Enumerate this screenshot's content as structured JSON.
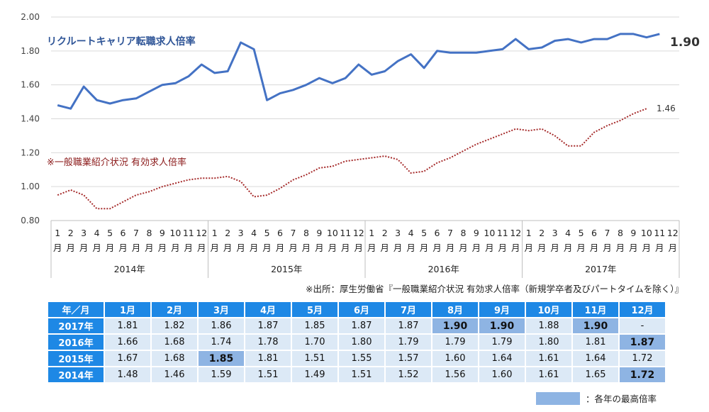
{
  "chart_data": {
    "type": "line",
    "y_ticks": [
      "2.00",
      "1.80",
      "1.60",
      "1.40",
      "1.20",
      "1.00",
      "0.80"
    ],
    "ylim": [
      0.8,
      2.0
    ],
    "month_numbers": [
      "1",
      "2",
      "3",
      "4",
      "5",
      "6",
      "7",
      "8",
      "9",
      "10",
      "11",
      "12"
    ],
    "month_suffix": "月",
    "years": [
      "2014年",
      "2015年",
      "2016年",
      "2017年"
    ],
    "series": [
      {
        "name": "リクルートキャリア転職求人倍率",
        "color": "#4472C4",
        "style": "solid",
        "end_label": "1.90",
        "values": [
          1.48,
          1.46,
          1.59,
          1.51,
          1.49,
          1.51,
          1.52,
          1.56,
          1.6,
          1.61,
          1.65,
          1.72,
          1.67,
          1.68,
          1.85,
          1.81,
          1.51,
          1.55,
          1.57,
          1.6,
          1.64,
          1.61,
          1.64,
          1.72,
          1.66,
          1.68,
          1.74,
          1.78,
          1.7,
          1.8,
          1.79,
          1.79,
          1.79,
          1.8,
          1.81,
          1.87,
          1.81,
          1.82,
          1.86,
          1.87,
          1.85,
          1.87,
          1.87,
          1.9,
          1.9,
          1.88,
          1.9
        ]
      },
      {
        "name": "※一般職業紹介状況 有効求人倍率",
        "color": "#A52A2A",
        "style": "dotted",
        "end_label": "1.46",
        "values": [
          0.95,
          0.98,
          0.95,
          0.87,
          0.87,
          0.91,
          0.95,
          0.97,
          1.0,
          1.02,
          1.04,
          1.05,
          1.05,
          1.06,
          1.03,
          0.94,
          0.95,
          0.99,
          1.04,
          1.07,
          1.11,
          1.12,
          1.15,
          1.16,
          1.17,
          1.18,
          1.16,
          1.08,
          1.09,
          1.14,
          1.17,
          1.21,
          1.25,
          1.28,
          1.31,
          1.34,
          1.33,
          1.34,
          1.3,
          1.24,
          1.24,
          1.32,
          1.36,
          1.39,
          1.43,
          1.46
        ]
      }
    ]
  },
  "source_note": "※出所：厚生労働省『一般職業紹介状況 有効求人倍率（新規学卒者及びパートタイムを除く）』",
  "table": {
    "corner": "年／月",
    "months": [
      "1月",
      "2月",
      "3月",
      "4月",
      "5月",
      "6月",
      "7月",
      "8月",
      "9月",
      "10月",
      "11月",
      "12月"
    ],
    "rows": [
      {
        "year": "2017年",
        "values": [
          "1.81",
          "1.82",
          "1.86",
          "1.87",
          "1.85",
          "1.87",
          "1.87",
          "1.90",
          "1.90",
          "1.88",
          "1.90",
          "-"
        ],
        "highlight": [
          7,
          8,
          10
        ]
      },
      {
        "year": "2016年",
        "values": [
          "1.66",
          "1.68",
          "1.74",
          "1.78",
          "1.70",
          "1.80",
          "1.79",
          "1.79",
          "1.79",
          "1.80",
          "1.81",
          "1.87"
        ],
        "highlight": [
          11
        ]
      },
      {
        "year": "2015年",
        "values": [
          "1.67",
          "1.68",
          "1.85",
          "1.81",
          "1.51",
          "1.55",
          "1.57",
          "1.60",
          "1.64",
          "1.61",
          "1.64",
          "1.72"
        ],
        "highlight": [
          2
        ]
      },
      {
        "year": "2014年",
        "values": [
          "1.48",
          "1.46",
          "1.59",
          "1.51",
          "1.49",
          "1.51",
          "1.52",
          "1.56",
          "1.60",
          "1.61",
          "1.65",
          "1.72"
        ],
        "highlight": [
          11
        ]
      }
    ]
  },
  "legend": {
    "label": "：各年の最高倍率",
    "color": "#8EB4E3"
  }
}
